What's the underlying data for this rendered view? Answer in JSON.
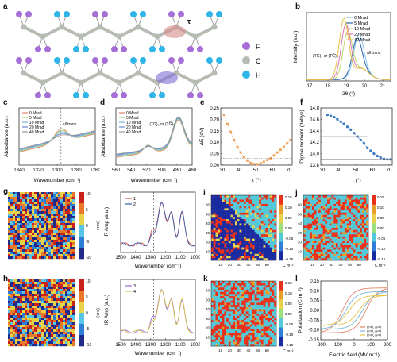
{
  "panel_labels": {
    "a": "a",
    "b": "b",
    "c": "c",
    "d": "d",
    "e": "e",
    "f": "f",
    "g": "g",
    "h": "h",
    "i": "i",
    "j": "j",
    "k": "k",
    "l": "l"
  },
  "panel_a": {
    "legend": [
      "F",
      "C",
      "H"
    ],
    "tau_label": "τ",
    "colors": {
      "F": "#a56fd6",
      "C": "#b7bcb3",
      "H": "#2fb5e8",
      "highlight": "#d58a8a",
      "highlight2": "#7e6ad6"
    }
  },
  "chart_data": [
    {
      "id": "b",
      "type": "line",
      "title": "",
      "xlabel": "2θ (°)",
      "ylabel": "Intensity (a.u.)",
      "xlim": [
        17,
        21.5
      ],
      "xticks": [
        "17",
        "18",
        "19",
        "20",
        "21"
      ],
      "annotations": [
        "(TG)₃ or (TG̅)₃",
        "all trans"
      ],
      "series": [
        {
          "name": "0 Mrad",
          "color": "#86c5e8",
          "peak_x": 19.8,
          "peak_y": 0.55
        },
        {
          "name": "5 Mrad",
          "color": "#2b5fa8",
          "peak_x": 19.7,
          "peak_y": 0.5
        },
        {
          "name": "10 Mrad",
          "color": "#b5d86b",
          "peak_x": 19.2,
          "peak_y": 0.72
        },
        {
          "name": "20 Mrad",
          "color": "#e276b6",
          "peak_x": 19.1,
          "peak_y": 0.85
        },
        {
          "name": "40 Mrad",
          "color": "#e8c447",
          "peak_x": 19.0,
          "peak_y": 0.95
        }
      ]
    },
    {
      "id": "c",
      "type": "line",
      "xlabel": "Wavenumber (cm⁻¹)",
      "ylabel": "Absorbance (a.u.)",
      "xlim": [
        1340,
        1260
      ],
      "xticks": [
        "1340",
        "1320",
        "1300",
        "1280",
        "1260"
      ],
      "annotations": [
        "all trans"
      ],
      "series": [
        {
          "name": "0 Mrad",
          "color": "#e0846a"
        },
        {
          "name": "5 Mrad",
          "color": "#9ccf79"
        },
        {
          "name": "10 Mrad",
          "color": "#7ab7d6"
        },
        {
          "name": "20 Mrad",
          "color": "#6c86c7"
        },
        {
          "name": "40 Mrad",
          "color": "#9a9a9a"
        }
      ]
    },
    {
      "id": "d",
      "type": "line",
      "xlabel": "Wavenumber (cm⁻¹)",
      "ylabel": "Absorbance (a.u.)",
      "xlim": [
        560,
        400
      ],
      "xticks": [
        "560",
        "540",
        "520",
        "500",
        "480",
        "460"
      ],
      "annotations": [
        "(TG)₃ or (TG̅)₃"
      ],
      "series": [
        {
          "name": "0 Mrad",
          "color": "#e0846a"
        },
        {
          "name": "5 Mrad",
          "color": "#9ccf79"
        },
        {
          "name": "10 Mrad",
          "color": "#7ab7d6"
        },
        {
          "name": "20 Mrad",
          "color": "#6c86c7"
        },
        {
          "name": "40 Mrad",
          "color": "#9a9a9a"
        }
      ]
    },
    {
      "id": "e",
      "type": "scatter",
      "xlabel": "τ (°)",
      "ylabel": "ΔE (eV)",
      "xlim": [
        30,
        73
      ],
      "ylim": [
        0,
        0.25
      ],
      "xticks": [
        "30",
        "40",
        "50",
        "60",
        "70"
      ],
      "yticks": [
        "0.00",
        "0.05",
        "0.10",
        "0.15",
        "0.20",
        "0.25"
      ],
      "color": "#f0a35a",
      "x": [
        32,
        34,
        36,
        38,
        40,
        42,
        44,
        46,
        48,
        50,
        52,
        54,
        56,
        58,
        60,
        62,
        64,
        66,
        68,
        70,
        72
      ],
      "values": [
        0.22,
        0.18,
        0.145,
        0.11,
        0.08,
        0.055,
        0.035,
        0.02,
        0.01,
        0.005,
        0.004,
        0.008,
        0.015,
        0.022,
        0.03,
        0.042,
        0.055,
        0.067,
        0.08,
        0.095,
        0.11
      ]
    },
    {
      "id": "f",
      "type": "scatter",
      "xlabel": "τ (°)",
      "ylabel": "Dipole moment (debye)",
      "xlim": [
        30,
        73
      ],
      "ylim": [
        13.8,
        14.8
      ],
      "xticks": [
        "30",
        "40",
        "50",
        "60",
        "70"
      ],
      "yticks": [
        "13.8",
        "14.0",
        "14.2",
        "14.4",
        "14.6",
        "14.8"
      ],
      "color": "#3a78c2",
      "x": [
        34,
        36,
        38,
        40,
        42,
        44,
        46,
        48,
        50,
        52,
        54,
        56,
        58,
        60,
        62,
        64,
        66,
        68,
        70,
        72
      ],
      "values": [
        14.68,
        14.66,
        14.64,
        14.6,
        14.56,
        14.52,
        14.47,
        14.42,
        14.36,
        14.3,
        14.24,
        14.18,
        14.1,
        14.05,
        14.0,
        13.96,
        13.93,
        13.91,
        13.9,
        13.9
      ]
    },
    {
      "id": "g_spec",
      "type": "line",
      "xlabel": "Wavenumber (cm⁻¹)",
      "ylabel": "IR Amp (a.u.)",
      "xticks": [
        "1500",
        "1400",
        "1300",
        "1200",
        "1100",
        "1000"
      ],
      "series": [
        {
          "name": "1",
          "color": "#e0534a"
        },
        {
          "name": "2",
          "color": "#3a5fb0"
        }
      ]
    },
    {
      "id": "h_spec",
      "type": "line",
      "xlabel": "Wavenumber (cm⁻¹)",
      "ylabel": "IR Amp (a.u.)",
      "xticks": [
        "1500",
        "1400",
        "1300",
        "1200",
        "1100",
        "1000"
      ],
      "series": [
        {
          "name": "3",
          "color": "#9b6ad6"
        },
        {
          "name": "4",
          "color": "#d6c24a"
        }
      ]
    },
    {
      "id": "l",
      "type": "line",
      "xlabel": "Electric field (MV m⁻¹)",
      "ylabel": "Polarization (C m⁻²)",
      "xticks": [
        "-200",
        "-100",
        "0",
        "100",
        "200"
      ],
      "yticks": [
        "-0.15",
        "-0.10",
        "-0.05",
        "0.00",
        "0.05",
        "0.10",
        "0.15"
      ],
      "series": [
        {
          "name": "α=0, a=0",
          "color": "#e0846a"
        },
        {
          "name": "α=0, a=0",
          "color": "#7ab7d6"
        },
        {
          "name": "α=0, a=0",
          "color": "#e8c447"
        }
      ]
    }
  ],
  "colorbars": {
    "g": [
      "10",
      "5",
      "0",
      "-5",
      "-10"
    ],
    "h": [
      "10",
      "5",
      "0",
      "-5",
      "-10"
    ],
    "ijk": [
      "0.15",
      "0.10",
      "0.05",
      "0.00",
      "-0.05",
      "-0.10",
      "-0.15"
    ],
    "units_map": "(a.u.)",
    "units_field": "C m⁻²"
  },
  "map_ticks": [
    "10",
    "20",
    "30",
    "40",
    "50",
    "60"
  ]
}
